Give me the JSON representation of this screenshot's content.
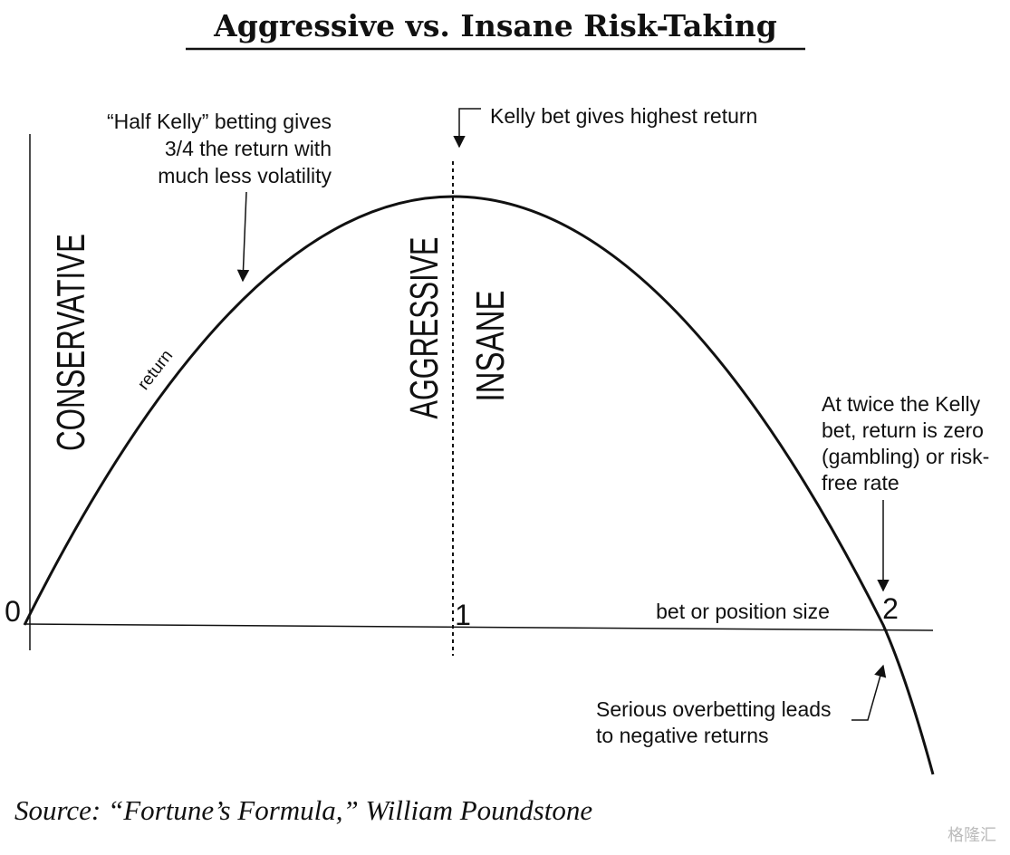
{
  "title": "Aggressive vs. Insane Risk-Taking",
  "axis": {
    "origin": "0",
    "kelly": "1",
    "double_kelly": "2",
    "x_label": "bet or position size",
    "curve_label": "return"
  },
  "zones": [
    "CONSERVATIVE",
    "AGGRESSIVE",
    "INSANE"
  ],
  "annotations": {
    "half_kelly": [
      "“Half Kelly” betting gives",
      "3/4 the return with",
      "much less volatility"
    ],
    "kelly_peak": "Kelly bet gives highest return",
    "twice_kelly": [
      "At twice the Kelly",
      "bet, return is zero",
      "(gambling) or risk-",
      "free rate"
    ],
    "overbetting": [
      "Serious overbetting leads",
      "to negative returns"
    ]
  },
  "source": "Source: “Fortune’s Formula,” William Poundstone",
  "watermark": "格隆汇"
}
